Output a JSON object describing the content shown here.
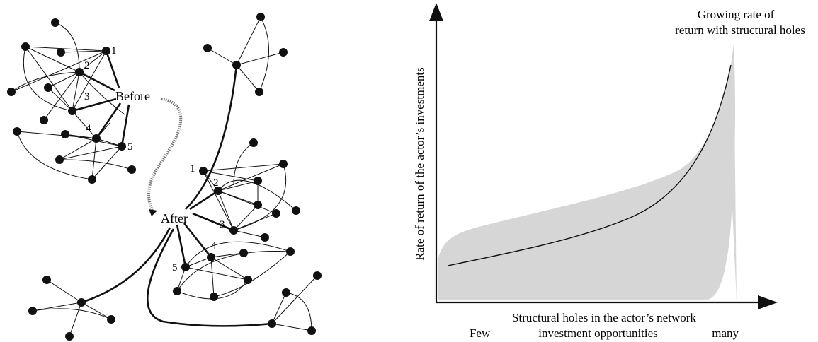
{
  "network_diagram": {
    "before_label": "Before",
    "after_label": "After",
    "cluster_before_numbers": [
      "1",
      "2",
      "3",
      "4",
      "5"
    ],
    "cluster_after_numbers": [
      "1",
      "2",
      "3",
      "4",
      "5"
    ]
  },
  "returns_chart": {
    "curve_label_line1": "Growing rate of",
    "curve_label_line2": "return with structural holes",
    "ylabel": "Rate of return of the actor’s investments",
    "xlabel": "Structural holes in the actor’s network",
    "xaxis_scale": "Few________investment opportunities_________many"
  },
  "colors": {
    "ink": "#111111",
    "band": "#d6d6d6"
  }
}
